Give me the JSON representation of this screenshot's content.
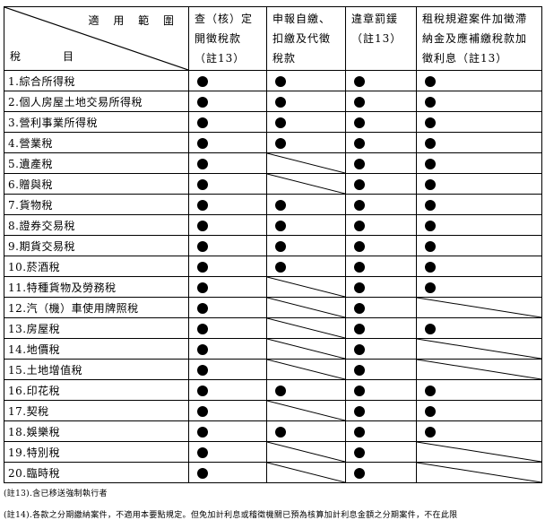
{
  "header": {
    "corner_top": "適 用 範 圍",
    "corner_bottom_left": "稅",
    "corner_bottom_right": "目",
    "columns": [
      [
        "查（核）定",
        "開徵稅款",
        "（註13）"
      ],
      [
        "申報自繳、",
        "扣繳及代徵",
        "稅款"
      ],
      [
        "違章罰鍰",
        "（註13）"
      ],
      [
        "租稅規避案件加徵滯",
        "納金及應補繳稅款加",
        "徵利息（註13）"
      ]
    ]
  },
  "legend": {
    "dot": "applicable",
    "slash": "not-applicable"
  },
  "rows": [
    {
      "name": "1.綜合所得稅",
      "marks": [
        "dot",
        "dot",
        "dot",
        "dot"
      ]
    },
    {
      "name": "2.個人房屋土地交易所得稅",
      "marks": [
        "dot",
        "dot",
        "dot",
        "dot"
      ]
    },
    {
      "name": "3.營利事業所得稅",
      "marks": [
        "dot",
        "dot",
        "dot",
        "dot"
      ]
    },
    {
      "name": "4.營業稅",
      "marks": [
        "dot",
        "dot",
        "dot",
        "dot"
      ]
    },
    {
      "name": "5.遺產稅",
      "marks": [
        "dot",
        "slash",
        "dot",
        "dot"
      ]
    },
    {
      "name": "6.贈與稅",
      "marks": [
        "dot",
        "slash",
        "dot",
        "dot"
      ]
    },
    {
      "name": "7.貨物稅",
      "marks": [
        "dot",
        "dot",
        "dot",
        "dot"
      ]
    },
    {
      "name": "8.證券交易稅",
      "marks": [
        "dot",
        "dot",
        "dot",
        "dot"
      ]
    },
    {
      "name": "9.期貨交易稅",
      "marks": [
        "dot",
        "dot",
        "dot",
        "dot"
      ]
    },
    {
      "name": "10.菸酒稅",
      "marks": [
        "dot",
        "dot",
        "dot",
        "dot"
      ]
    },
    {
      "name": "11.特種貨物及勞務稅",
      "marks": [
        "dot",
        "slash",
        "dot",
        "dot"
      ]
    },
    {
      "name": "12.汽（機）車使用牌照稅",
      "marks": [
        "dot",
        "slash",
        "dot",
        "slash"
      ]
    },
    {
      "name": "13.房屋稅",
      "marks": [
        "dot",
        "slash",
        "dot",
        "dot"
      ]
    },
    {
      "name": "14.地價稅",
      "marks": [
        "dot",
        "slash",
        "dot",
        "slash"
      ]
    },
    {
      "name": "15.土地增值稅",
      "marks": [
        "dot",
        "slash",
        "dot",
        "slash"
      ]
    },
    {
      "name": "16.印花稅",
      "marks": [
        "dot",
        "dot",
        "dot",
        "dot"
      ]
    },
    {
      "name": "17.契稅",
      "marks": [
        "dot",
        "slash",
        "dot",
        "dot"
      ]
    },
    {
      "name": "18.娛樂稅",
      "marks": [
        "dot",
        "dot",
        "dot",
        "dot"
      ]
    },
    {
      "name": "19.特別稅",
      "marks": [
        "dot",
        "slash",
        "dot",
        "slash"
      ]
    },
    {
      "name": "20.臨時稅",
      "marks": [
        "dot",
        "slash",
        "dot",
        "slash"
      ]
    }
  ],
  "notes": [
    "(註13).含已移送強制執行者",
    "(註14).各款之分期繳納案件，不適用本要點規定。但免加計利息或稽徵機關已預為核算加計利息金額之分期案件，不在此限"
  ]
}
